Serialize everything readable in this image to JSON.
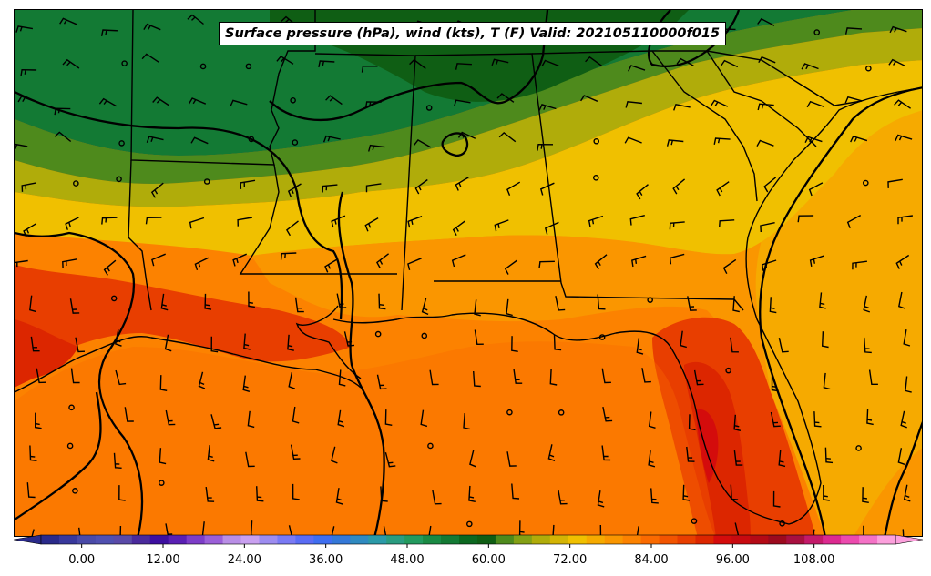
{
  "title": "Surface pressure (hPa), wind (kts), T (F) Valid: 202105110000f015",
  "colorbar": {
    "tick_labels": [
      "0.00",
      "12.00",
      "24.00",
      "36.00",
      "48.00",
      "60.00",
      "72.00",
      "84.00",
      "96.00",
      "108.00"
    ],
    "tick_values": [
      0,
      12,
      24,
      36,
      48,
      60,
      72,
      84,
      96,
      108
    ],
    "min": -6,
    "max": 120,
    "step": 3,
    "colors": [
      "#2a2a8a",
      "#38389c",
      "#4a4aa8",
      "#5050b0",
      "#5a4aa8",
      "#4a2a9c",
      "#3d0fa0",
      "#5a1fb4",
      "#7d3dc8",
      "#9b5fd8",
      "#b98ee6",
      "#c9a0f0",
      "#9d8cf0",
      "#7a7af4",
      "#5a6cf4",
      "#3f6ef0",
      "#3478d8",
      "#2f8ac0",
      "#2b9aa8",
      "#2a9c80",
      "#239a5e",
      "#1a8a44",
      "#137a34",
      "#0c6820",
      "#0f5e14",
      "#4e8a1c",
      "#84a014",
      "#b0ac0a",
      "#d4b404",
      "#f0c000",
      "#f6aa00",
      "#fa9600",
      "#fc8200",
      "#fa6a00",
      "#f25400",
      "#e83e00",
      "#dc2600",
      "#d40c0c",
      "#c80a10",
      "#b40a16",
      "#9c0a1e",
      "#a81040",
      "#c41a6a",
      "#dc2a90",
      "#ec4aae",
      "#f472c6",
      "#fca0dc"
    ]
  },
  "map": {
    "legend_field": "2m temperature (F)",
    "notes": "Southeastern United States, filled temperature contours with pressure isobars (black) and wind barbs"
  }
}
